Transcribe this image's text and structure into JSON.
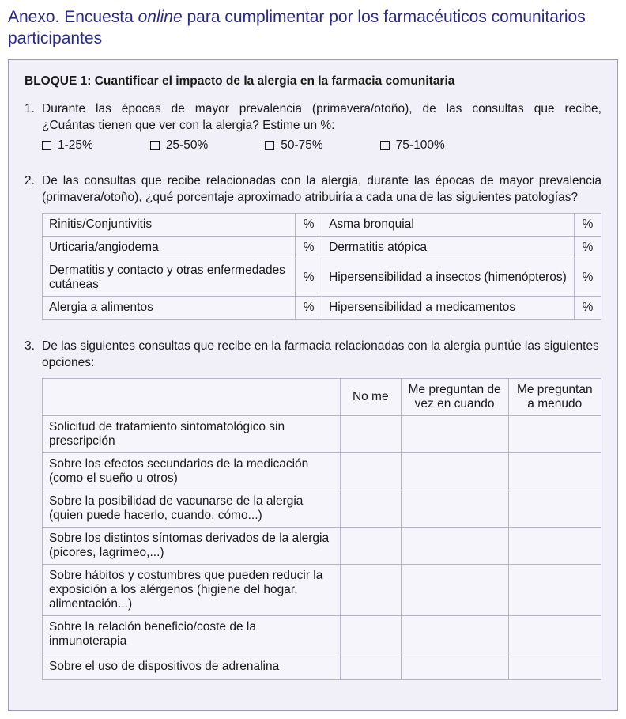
{
  "colors": {
    "title_color": "#2a2a8a",
    "panel_bg": "#f1f0f8",
    "panel_border": "#9a9ab8",
    "cell_bg": "#f6f5fb",
    "cell_border": "#b6b6c8",
    "text_color": "#1a1a1a"
  },
  "title": {
    "pre": "Anexo. Encuesta ",
    "italic": "online",
    "post": " para cumplimentar por los farmacéuticos comunitarios participantes"
  },
  "bloque": "BLOQUE 1: Cuantificar el impacto de la alergia en la farmacia comunitaria",
  "q1": {
    "num": "1.",
    "line1": "Durante las épocas de mayor prevalencia (primavera/otoño), de las consultas que recibe,",
    "line2": "¿Cuántas tienen que ver con la alergia? Estime un %:",
    "options": [
      "1-25%",
      "25-50%",
      "50-75%",
      "75-100%"
    ]
  },
  "q2": {
    "num": "2.",
    "text": "De las consultas que recibe relacionadas con la alergia, durante las épocas de mayor prevalencia (primavera/otoño), ¿qué porcentaje aproximado atribuiría a cada una de las siguientes  patologías?",
    "pct": "%",
    "rows": [
      {
        "left": "Rinitis/Conjuntivitis",
        "right": "Asma bronquial"
      },
      {
        "left": "Urticaria/angiodema",
        "right": "Dermatitis atópica"
      },
      {
        "left": "Dermatitis y contacto y otras enfermedades cutáneas",
        "right": "Hipersensibilidad a insectos (himenópteros)"
      },
      {
        "left": "Alergia a alimentos",
        "right": "Hipersensibilidad a medicamentos"
      }
    ]
  },
  "q3": {
    "num": "3.",
    "text": "De las siguientes consultas que recibe en la farmacia relacionadas con la alergia puntúe las siguientes opciones:",
    "headers": [
      "No me",
      "Me preguntan de vez en cuando",
      "Me preguntan a menudo"
    ],
    "rows": [
      "Solicitud de tratamiento sintomatológico sin prescripción",
      "Sobre los efectos secundarios de la medicación (como el sueño u otros)",
      "Sobre la posibilidad de vacunarse de la alergia (quien puede hacerlo, cuando, cómo...)",
      "Sobre los distintos síntomas derivados de la alergia (picores, lagrimeo,...)",
      "Sobre hábitos y costumbres que pueden reducir la exposición a los alérgenos (higiene del hogar, alimentación...)",
      "Sobre la relación beneficio/coste de la inmunoterapia",
      "Sobre el uso de dispositivos de adrenalina"
    ]
  }
}
